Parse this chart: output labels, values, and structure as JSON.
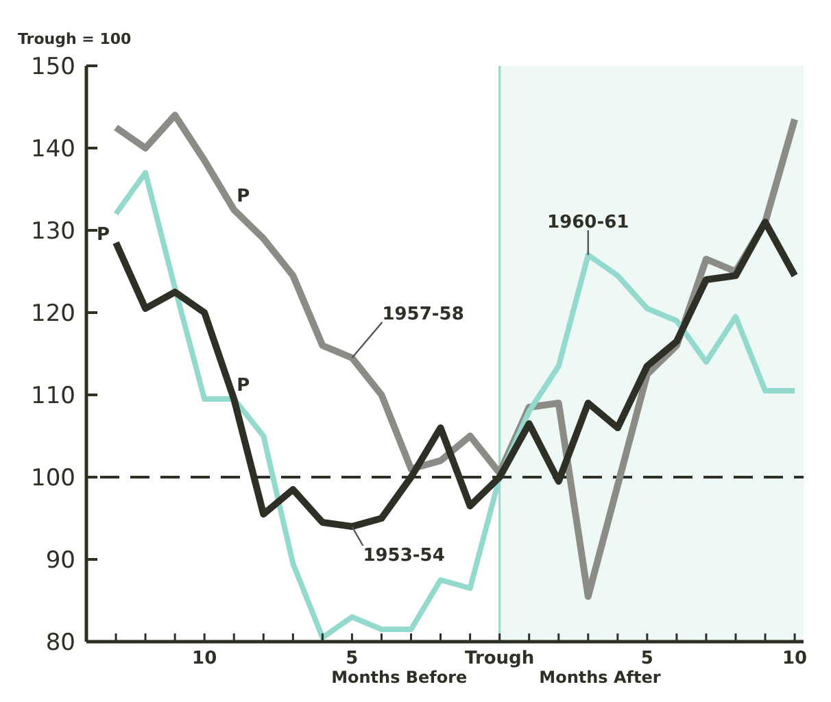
{
  "chart_data": {
    "type": "line",
    "ylabel": "Trough = 100",
    "x": [
      -13,
      -12,
      -11,
      -10,
      -9,
      -8,
      -7,
      -6,
      -5,
      -4,
      -3,
      -2,
      -1,
      0,
      1,
      2,
      3,
      4,
      5,
      6,
      7,
      8,
      9,
      10
    ],
    "series": [
      {
        "name": "1957-58",
        "color": "#8c8c86",
        "values": [
          142.5,
          140,
          144,
          138.5,
          132.5,
          129,
          124.5,
          116,
          114.5,
          110,
          101,
          102,
          105,
          100.5,
          108.5,
          109,
          85.5,
          99,
          112.5,
          116,
          126.5,
          125,
          131,
          143.5
        ]
      },
      {
        "name": "1960-61",
        "color": "#93d9cd",
        "values": [
          132,
          137,
          123,
          109.5,
          109.5,
          105,
          89.5,
          80.5,
          83,
          81.5,
          81.5,
          87.5,
          86.5,
          100,
          108,
          113.5,
          127,
          124.5,
          120.5,
          119,
          114,
          119.5,
          110.5,
          110.5
        ]
      },
      {
        "name": "1953-54",
        "color": "#2e3026",
        "values": [
          128.5,
          120.5,
          122.5,
          120,
          109.5,
          95.5,
          98.5,
          94.5,
          94,
          95,
          100,
          106,
          96.5,
          100,
          106.5,
          99.5,
          109,
          106,
          113.5,
          116.5,
          124,
          124.5,
          131,
          124.5
        ]
      }
    ],
    "xlim": [
      -14,
      10.3
    ],
    "ylim": [
      80,
      150
    ],
    "xticks": [
      {
        "value": -13,
        "label": null
      },
      {
        "value": -12,
        "label": null
      },
      {
        "value": -11,
        "label": null
      },
      {
        "value": -10,
        "label": "10"
      },
      {
        "value": -9,
        "label": null
      },
      {
        "value": -8,
        "label": null
      },
      {
        "value": -7,
        "label": null
      },
      {
        "value": -6,
        "label": null
      },
      {
        "value": -5,
        "label": "5"
      },
      {
        "value": -4,
        "label": null
      },
      {
        "value": -3,
        "label": null
      },
      {
        "value": -2,
        "label": null
      },
      {
        "value": -1,
        "label": null
      },
      {
        "value": 0,
        "label": "Trough"
      },
      {
        "value": 1,
        "label": null
      },
      {
        "value": 2,
        "label": null
      },
      {
        "value": 3,
        "label": null
      },
      {
        "value": 4,
        "label": null
      },
      {
        "value": 5,
        "label": "5"
      },
      {
        "value": 6,
        "label": null
      },
      {
        "value": 7,
        "label": null
      },
      {
        "value": 8,
        "label": null
      },
      {
        "value": 9,
        "label": null
      },
      {
        "value": 10,
        "label": "10"
      }
    ],
    "yticks": [
      80,
      90,
      100,
      110,
      120,
      130,
      140,
      150
    ],
    "ref_lines": [
      {
        "axis": "y",
        "value": 100,
        "color": "#2e3026",
        "line_style": "dashed"
      },
      {
        "axis": "x",
        "value": 0,
        "color": "#93d9cd"
      }
    ],
    "bands": [
      {
        "axis": "x",
        "from": 0,
        "to": 10.3,
        "color": "#eef8f5"
      }
    ],
    "annotations": [
      "Months Before",
      "Months After",
      "P",
      "P",
      "P"
    ],
    "grid": false,
    "marker": "none",
    "line_style": "solid"
  }
}
